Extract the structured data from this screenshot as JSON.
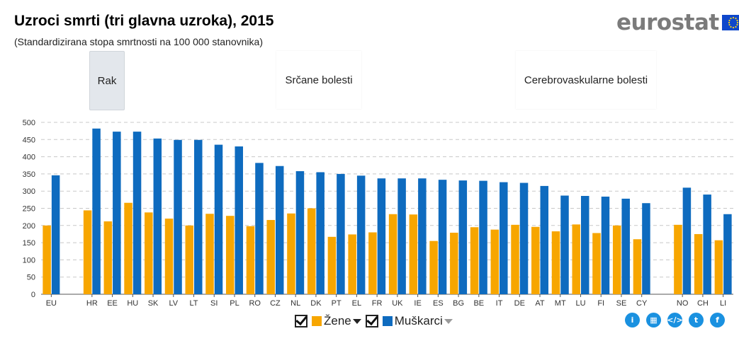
{
  "title": "Uzroci smrti (tri glavna uzroka), 2015",
  "subtitle": "(Standardizirana stopa smrtnosti na 100 000 stanovnika)",
  "logo": {
    "text": "eurostat"
  },
  "tabs": [
    "Rak",
    "Srčane bolesti",
    "Cerebrovaskularne bolesti"
  ],
  "legend": {
    "women": "Žene",
    "men": "Muškarci"
  },
  "colors": {
    "women": "#f7a600",
    "men": "#0e6bbf",
    "grid": "#c8c8c8"
  },
  "icons": [
    "info-icon",
    "table-icon",
    "embed-icon",
    "twitter-icon",
    "facebook-icon"
  ],
  "chart_data": {
    "type": "bar",
    "title": "Uzroci smrti (tri glavna uzroka), 2015",
    "subtitle": "(Standardizirana stopa smrtnosti na 100 000 stanovnika)",
    "ylim": [
      0,
      500
    ],
    "yticks": [
      0,
      50,
      100,
      150,
      200,
      250,
      300,
      350,
      400,
      450,
      500
    ],
    "grid": true,
    "categories": [
      "EU",
      "",
      "HR",
      "EE",
      "HU",
      "SK",
      "LV",
      "LT",
      "SI",
      "PL",
      "RO",
      "CZ",
      "NL",
      "DK",
      "PT",
      "EL",
      "FR",
      "UK",
      "IE",
      "ES",
      "BG",
      "BE",
      "IT",
      "DE",
      "AT",
      "MT",
      "LU",
      "FI",
      "SE",
      "CY",
      "",
      "NO",
      "CH",
      "LI"
    ],
    "series": [
      {
        "name": "Žene",
        "values": [
          200,
          null,
          244,
          212,
          266,
          238,
          220,
          200,
          234,
          228,
          198,
          216,
          235,
          250,
          167,
          174,
          180,
          233,
          232,
          155,
          179,
          195,
          188,
          202,
          196,
          183,
          203,
          178,
          200,
          160,
          null,
          202,
          175,
          157
        ]
      },
      {
        "name": "Muškarci",
        "values": [
          346,
          null,
          482,
          473,
          473,
          453,
          449,
          449,
          435,
          430,
          382,
          373,
          358,
          355,
          350,
          345,
          337,
          337,
          337,
          333,
          331,
          330,
          326,
          324,
          315,
          287,
          286,
          284,
          278,
          265,
          null,
          310,
          290,
          233
        ]
      }
    ]
  }
}
